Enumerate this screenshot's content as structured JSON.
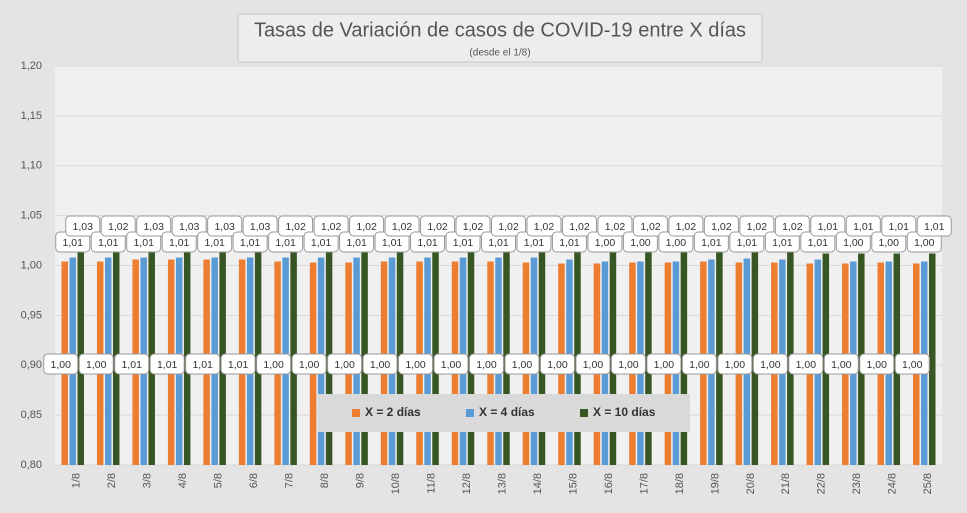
{
  "chart_data": {
    "type": "bar",
    "title": "Tasas de Variación de casos de COVID-19 entre X días",
    "subtitle": "(desde el 1/8)",
    "categories": [
      "1/8",
      "2/8",
      "3/8",
      "4/8",
      "5/8",
      "6/8",
      "7/8",
      "8/8",
      "9/8",
      "10/8",
      "11/8",
      "12/8",
      "13/8",
      "14/8",
      "15/8",
      "16/8",
      "17/8",
      "18/8",
      "19/8",
      "20/8",
      "21/8",
      "22/8",
      "23/8",
      "24/8",
      "25/8"
    ],
    "series": [
      {
        "name": "X = 2 días",
        "color": "#ed7d31",
        "values": [
          1.004,
          1.004,
          1.006,
          1.006,
          1.006,
          1.006,
          1.004,
          1.003,
          1.003,
          1.004,
          1.004,
          1.004,
          1.004,
          1.003,
          1.002,
          1.002,
          1.003,
          1.003,
          1.004,
          1.003,
          1.003,
          1.002,
          1.002,
          1.003,
          1.002
        ],
        "value_labels": [
          "1,00",
          "1,00",
          "1,01",
          "1,01",
          "1,01",
          "1,01",
          "1,00",
          "1,00",
          "1,00",
          "1,00",
          "1,00",
          "1,00",
          "1,00",
          "1,00",
          "1,00",
          "1,00",
          "1,00",
          "1,00",
          "1,00",
          "1,00",
          "1,00",
          "1,00",
          "1,00",
          "1,00",
          "1,00"
        ]
      },
      {
        "name": "X = 4 días",
        "color": "#5b9bd5",
        "values": [
          1.008,
          1.008,
          1.008,
          1.008,
          1.008,
          1.008,
          1.008,
          1.008,
          1.008,
          1.008,
          1.008,
          1.008,
          1.008,
          1.008,
          1.006,
          1.004,
          1.004,
          1.004,
          1.006,
          1.007,
          1.006,
          1.006,
          1.004,
          1.004,
          1.004
        ],
        "value_labels": [
          "1,01",
          "1,01",
          "1,01",
          "1,01",
          "1,01",
          "1,01",
          "1,01",
          "1,01",
          "1,01",
          "1,01",
          "1,01",
          "1,01",
          "1,01",
          "1,01",
          "1,01",
          "1,00",
          "1,00",
          "1,00",
          "1,01",
          "1,01",
          "1,01",
          "1,01",
          "1,00",
          "1,00",
          "1,00"
        ]
      },
      {
        "name": "X = 10 días",
        "color": "#375623",
        "values": [
          1.026,
          1.018,
          1.026,
          1.026,
          1.026,
          1.026,
          1.018,
          1.018,
          1.018,
          1.018,
          1.018,
          1.018,
          1.018,
          1.018,
          1.018,
          1.018,
          1.018,
          1.018,
          1.018,
          1.018,
          1.018,
          1.012,
          1.012,
          1.012,
          1.012
        ],
        "value_labels": [
          "1,03",
          "1,02",
          "1,03",
          "1,03",
          "1,03",
          "1,03",
          "1,02",
          "1,02",
          "1,02",
          "1,02",
          "1,02",
          "1,02",
          "1,02",
          "1,02",
          "1,02",
          "1,02",
          "1,02",
          "1,02",
          "1,02",
          "1,02",
          "1,02",
          "1,01",
          "1,01",
          "1,01",
          "1,01"
        ]
      }
    ],
    "ylim": [
      0.8,
      1.2
    ],
    "yticks": [
      {
        "value": 0.8,
        "label": "0,80"
      },
      {
        "value": 0.85,
        "label": "0,85"
      },
      {
        "value": 0.9,
        "label": "0,90"
      },
      {
        "value": 0.95,
        "label": "0,95"
      },
      {
        "value": 1.0,
        "label": "1,00"
      },
      {
        "value": 1.05,
        "label": "1,05"
      },
      {
        "value": 1.1,
        "label": "1,10"
      },
      {
        "value": 1.15,
        "label": "1,15"
      },
      {
        "value": 1.2,
        "label": "1,20"
      }
    ],
    "grid": true,
    "legend": "bottom"
  }
}
